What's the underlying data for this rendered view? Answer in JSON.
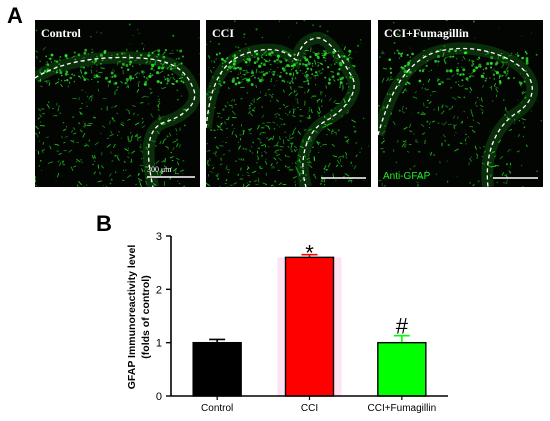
{
  "figure": {
    "panel_a_letter": "A",
    "panel_b_letter": "B"
  },
  "micrographs": [
    {
      "label": "Control",
      "scale_text": "300 μm",
      "stain_label": ""
    },
    {
      "label": "CCI",
      "scale_text": "",
      "stain_label": ""
    },
    {
      "label": "CCI+Fumagillin",
      "scale_text": "",
      "stain_label": "Anti-GFAP"
    }
  ],
  "colors": {
    "control_bar": "#000000",
    "cci_bar": "#ff0000",
    "fumagillin_bar": "#00ff00",
    "stain_green": "#22ee22",
    "micrograph_background": "#030503"
  },
  "chart_data": {
    "type": "bar",
    "categories": [
      "Control",
      "CCI",
      "CCI+Fumagillin"
    ],
    "values": [
      1.0,
      2.6,
      1.0
    ],
    "errors": [
      0.06,
      0.05,
      0.13
    ],
    "significance": [
      "",
      "*",
      "#"
    ],
    "ylabel_line1": "GFAP Immunoreactivity level",
    "ylabel_line2": "(folds of control)",
    "ylim": [
      0,
      3
    ],
    "yticks": [
      0,
      1,
      2,
      3
    ],
    "xlabel": "",
    "title": "",
    "grid": false,
    "legend": "none"
  }
}
